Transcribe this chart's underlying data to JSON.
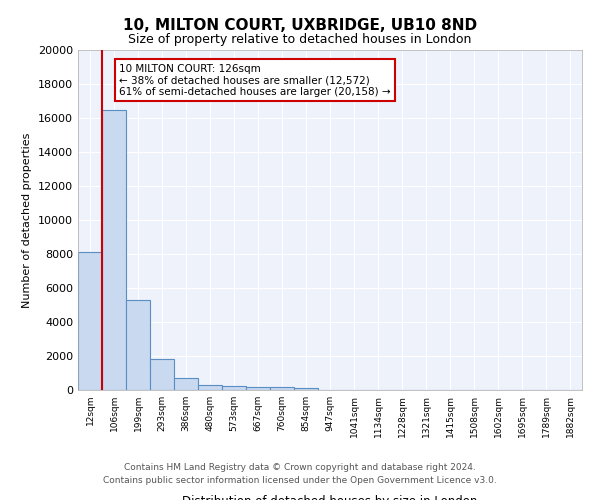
{
  "title1": "10, MILTON COURT, UXBRIDGE, UB10 8ND",
  "title2": "Size of property relative to detached houses in London",
  "xlabel": "Distribution of detached houses by size in London",
  "ylabel": "Number of detached properties",
  "bin_labels": [
    "12sqm",
    "106sqm",
    "199sqm",
    "293sqm",
    "386sqm",
    "480sqm",
    "573sqm",
    "667sqm",
    "760sqm",
    "854sqm",
    "947sqm",
    "1041sqm",
    "1134sqm",
    "1228sqm",
    "1321sqm",
    "1415sqm",
    "1508sqm",
    "1602sqm",
    "1695sqm",
    "1789sqm",
    "1882sqm"
  ],
  "bar_heights": [
    8100,
    16500,
    5300,
    1850,
    700,
    300,
    220,
    190,
    170,
    130,
    0,
    0,
    0,
    0,
    0,
    0,
    0,
    0,
    0,
    0,
    0
  ],
  "bar_color": "#c9d9f0",
  "bar_edge_color": "#5a8fc3",
  "background_color": "#eef2fb",
  "grid_color": "#ffffff",
  "property_line_x": 1,
  "annotation_text": "10 MILTON COURT: 126sqm\n← 38% of detached houses are smaller (12,572)\n61% of semi-detached houses are larger (20,158) →",
  "annotation_box_color": "#ffffff",
  "annotation_box_edge": "#cc0000",
  "vline_color": "#cc0000",
  "ylim": [
    0,
    20000
  ],
  "yticks": [
    0,
    2000,
    4000,
    6000,
    8000,
    10000,
    12000,
    14000,
    16000,
    18000,
    20000
  ],
  "footnote1": "Contains HM Land Registry data © Crown copyright and database right 2024.",
  "footnote2": "Contains public sector information licensed under the Open Government Licence v3.0."
}
